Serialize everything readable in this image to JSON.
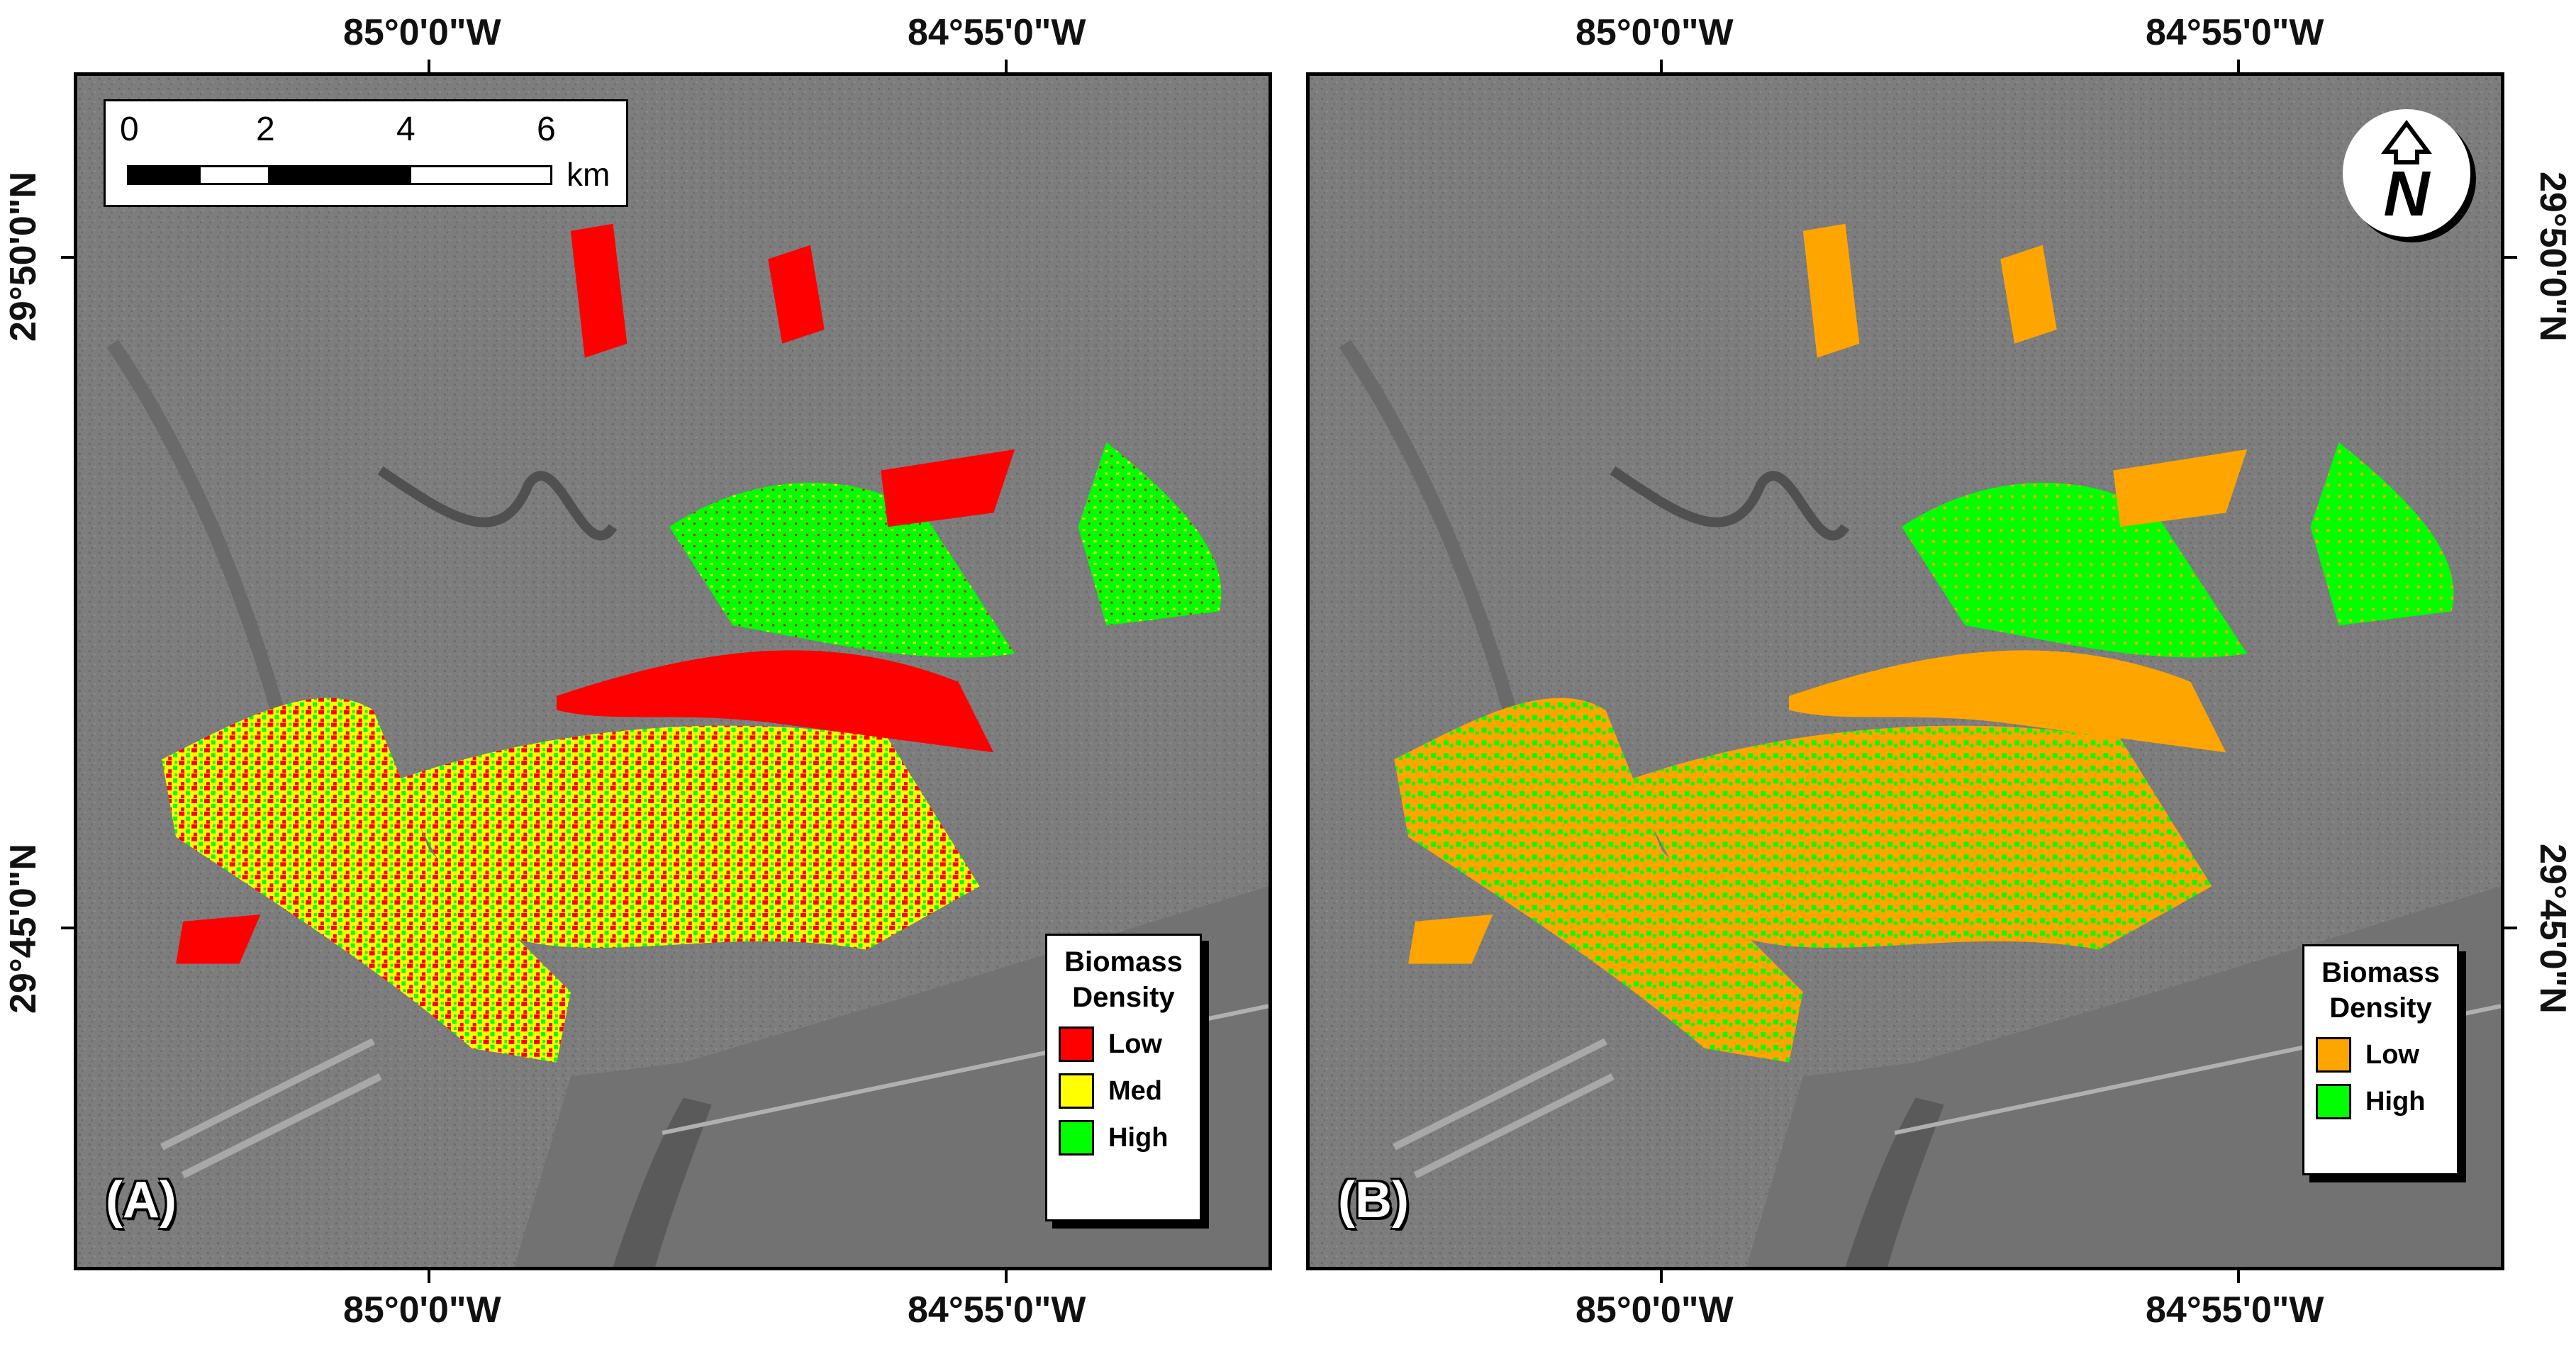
{
  "axes": {
    "lon_left": "85°0'0\"W",
    "lon_right": "84°55'0\"W",
    "lat_top": "29°50'0\"N",
    "lat_bottom": "29°45'0\"N"
  },
  "scale_bar": {
    "ticks": [
      "0",
      "2",
      "4",
      "6"
    ],
    "unit": "km"
  },
  "north_arrow": {
    "letter": "N"
  },
  "panel_a": {
    "label": "(A)",
    "legend_title_line1": "Biomass",
    "legend_title_line2": "Density",
    "items": [
      {
        "label": "Low",
        "color": "#ff0000"
      },
      {
        "label": "Med",
        "color": "#ffff00"
      },
      {
        "label": "High",
        "color": "#00ff00"
      }
    ]
  },
  "panel_b": {
    "label": "(B)",
    "legend_title_line1": "Biomass",
    "legend_title_line2": "Density",
    "items": [
      {
        "label": "Low",
        "color": "#ffa500"
      },
      {
        "label": "High",
        "color": "#00ff00"
      }
    ]
  },
  "colors": {
    "background_imagery": "#7e7e7e",
    "water": "#6e6e6e",
    "land_dark": "#5e5e5e",
    "low_a": "#ff0000",
    "med_a": "#ffff00",
    "high": "#00ff00",
    "low_b": "#ffa500"
  }
}
